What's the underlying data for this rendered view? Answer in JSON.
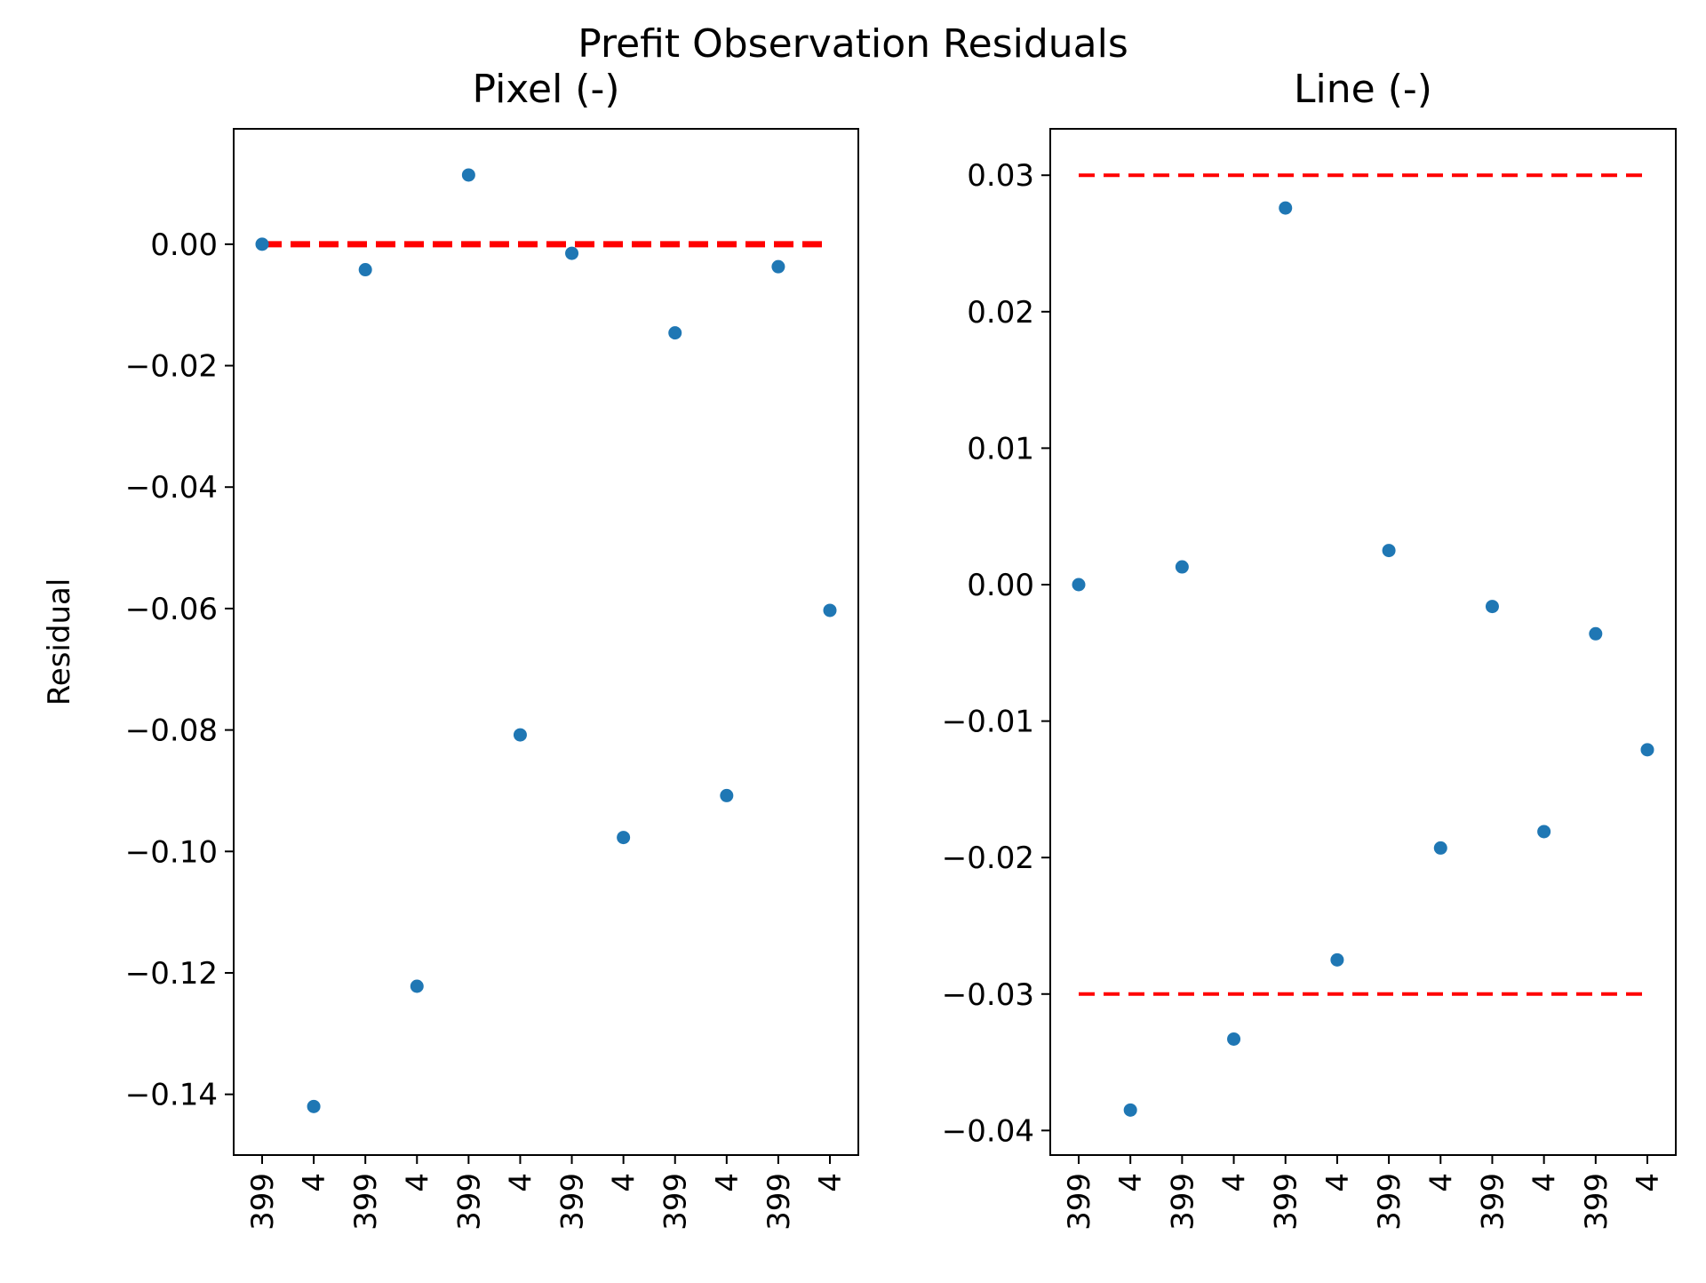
{
  "figure": {
    "suptitle": "Prefit Observation Residuals"
  },
  "colors": {
    "points": "#1f77b4",
    "threshold": "#ff0000",
    "axes": "#000000"
  },
  "chart_data": [
    {
      "type": "scatter",
      "title": "Pixel (-)",
      "ylabel": "Residual",
      "xlabel": "",
      "x_tick_labels": [
        "399",
        "4",
        "399",
        "4",
        "399",
        "4",
        "399",
        "4",
        "399",
        "4",
        "399",
        "4"
      ],
      "values": [
        0.0,
        -0.142,
        -0.0042,
        -0.1222,
        0.0114,
        -0.0808,
        -0.0015,
        -0.0977,
        -0.0146,
        -0.0908,
        -0.0037,
        -0.0603
      ],
      "reference_lines": [
        {
          "y": 0.0,
          "style": "dashed",
          "color": "#ff0000"
        }
      ],
      "ylim": [
        -0.15,
        0.019
      ],
      "yticks": [
        0.0,
        -0.02,
        -0.04,
        -0.06,
        -0.08,
        -0.1,
        -0.12,
        -0.14
      ],
      "ytick_labels": [
        "0.00",
        "−0.02",
        "−0.04",
        "−0.06",
        "−0.08",
        "−0.10",
        "−0.12",
        "−0.14"
      ],
      "grid": false,
      "legend": "none"
    },
    {
      "type": "scatter",
      "title": "Line (-)",
      "ylabel": "",
      "xlabel": "",
      "x_tick_labels": [
        "399",
        "4",
        "399",
        "4",
        "399",
        "4",
        "399",
        "4",
        "399",
        "4",
        "399",
        "4"
      ],
      "values": [
        0.0,
        -0.0385,
        0.0013,
        -0.0333,
        0.0276,
        -0.0275,
        0.0025,
        -0.0193,
        -0.0016,
        -0.0181,
        -0.0036,
        -0.0121
      ],
      "reference_lines": [
        {
          "y": 0.03,
          "style": "dashed",
          "color": "#ff0000"
        },
        {
          "y": -0.03,
          "style": "dashed",
          "color": "#ff0000"
        }
      ],
      "ylim": [
        -0.0418,
        0.0334
      ],
      "yticks": [
        0.03,
        0.02,
        0.01,
        0.0,
        -0.01,
        -0.02,
        -0.03,
        -0.04
      ],
      "ytick_labels": [
        "0.03",
        "0.02",
        "0.01",
        "0.00",
        "−0.01",
        "−0.02",
        "−0.03",
        "−0.04"
      ],
      "grid": false,
      "legend": "none"
    }
  ]
}
